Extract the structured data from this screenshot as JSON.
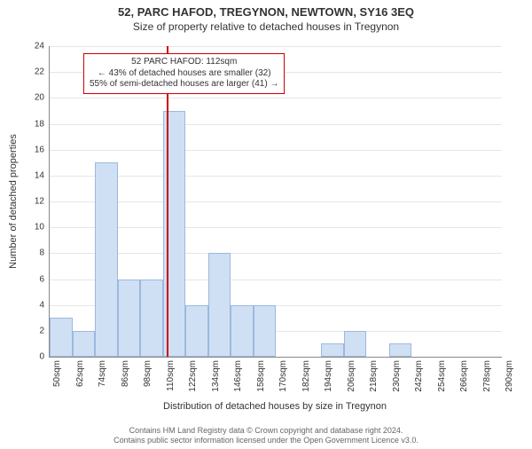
{
  "titles": {
    "line1": "52, PARC HAFOD, TREGYNON, NEWTOWN, SY16 3EQ",
    "line2": "Size of property relative to detached houses in Tregynon"
  },
  "chart": {
    "type": "histogram",
    "ylabel": "Number of detached properties",
    "xlabel": "Distribution of detached houses by size in Tregynon",
    "ylim": [
      0,
      24
    ],
    "ytick_step": 2,
    "xticks": [
      50,
      62,
      74,
      86,
      98,
      110,
      122,
      134,
      146,
      158,
      170,
      182,
      194,
      206,
      218,
      230,
      242,
      254,
      266,
      278,
      290
    ],
    "xtick_suffix": "sqm",
    "bar_color": "#cfe0f5",
    "bar_border_color": "#9db8dd",
    "grid_color": "#e6e6e6",
    "background_color": "#ffffff",
    "bar_width_ratio": 1.0,
    "bins": [
      {
        "start": 50,
        "value": 3
      },
      {
        "start": 62,
        "value": 2
      },
      {
        "start": 74,
        "value": 15
      },
      {
        "start": 86,
        "value": 6
      },
      {
        "start": 98,
        "value": 6
      },
      {
        "start": 110,
        "value": 19
      },
      {
        "start": 122,
        "value": 4
      },
      {
        "start": 134,
        "value": 8
      },
      {
        "start": 146,
        "value": 4
      },
      {
        "start": 158,
        "value": 4
      },
      {
        "start": 170,
        "value": 0
      },
      {
        "start": 182,
        "value": 0
      },
      {
        "start": 194,
        "value": 1
      },
      {
        "start": 206,
        "value": 2
      },
      {
        "start": 218,
        "value": 0
      },
      {
        "start": 230,
        "value": 1
      },
      {
        "start": 242,
        "value": 0
      },
      {
        "start": 254,
        "value": 0
      },
      {
        "start": 266,
        "value": 0
      },
      {
        "start": 278,
        "value": 0
      }
    ],
    "marker": {
      "value": 112,
      "color": "#cc0000"
    },
    "annotation": {
      "line1": "52 PARC HAFOD: 112sqm",
      "line2": "← 43% of detached houses are smaller (32)",
      "line3": "55% of semi-detached houses are larger (41) →",
      "border_color": "#cc0000"
    }
  },
  "footer": {
    "line1": "Contains HM Land Registry data © Crown copyright and database right 2024.",
    "line2": "Contains public sector information licensed under the Open Government Licence v3.0."
  }
}
